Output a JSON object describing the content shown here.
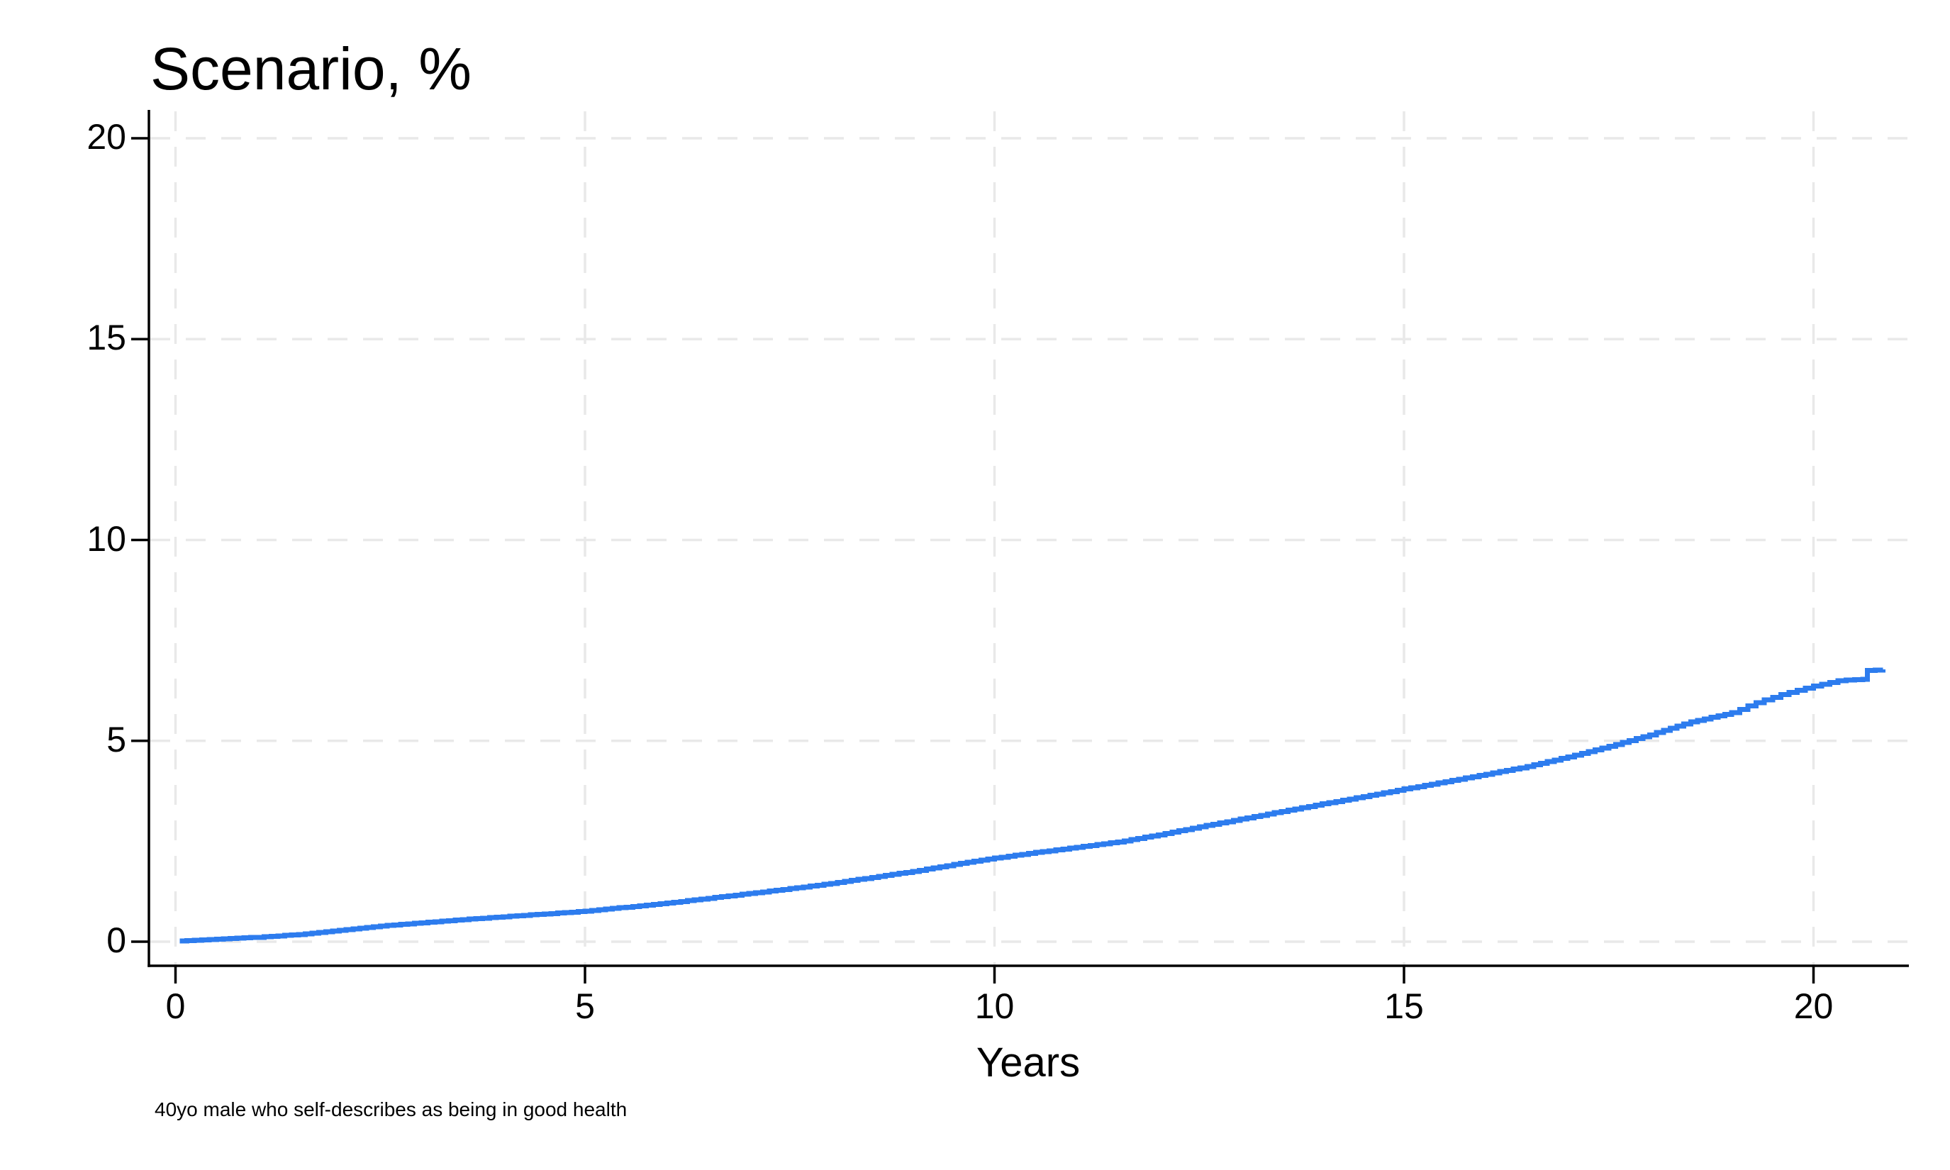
{
  "page": {
    "background": "#ffffff"
  },
  "chart_data": {
    "type": "line",
    "title": "Scenario, %",
    "xlabel": "Years",
    "ylabel": "",
    "footnote": "40yo male who self-describes as being in good health",
    "x_ticks": [
      0,
      5,
      10,
      15,
      20
    ],
    "y_ticks": [
      0,
      5,
      10,
      15,
      20
    ],
    "xlim": [
      -0.33,
      21.2
    ],
    "ylim": [
      -0.6,
      20.65
    ],
    "grid": true,
    "grid_style": "dashed",
    "legend_position": "none",
    "line_color": "#2d7cee",
    "axis_color": "#000000",
    "grid_color": "#e9e9e9",
    "series": [
      {
        "name": "Scenario",
        "style": "step",
        "points": [
          [
            0.05,
            0.02
          ],
          [
            0.5,
            0.06
          ],
          [
            1,
            0.11
          ],
          [
            1.5,
            0.18
          ],
          [
            2,
            0.28
          ],
          [
            2.5,
            0.39
          ],
          [
            3,
            0.47
          ],
          [
            3.5,
            0.55
          ],
          [
            4,
            0.62
          ],
          [
            4.5,
            0.69
          ],
          [
            5,
            0.76
          ],
          [
            5.5,
            0.86
          ],
          [
            6,
            0.96
          ],
          [
            6.5,
            1.08
          ],
          [
            7,
            1.2
          ],
          [
            7.5,
            1.32
          ],
          [
            8,
            1.45
          ],
          [
            8.5,
            1.6
          ],
          [
            9,
            1.75
          ],
          [
            9.5,
            1.92
          ],
          [
            10,
            2.08
          ],
          [
            10.5,
            2.22
          ],
          [
            11,
            2.35
          ],
          [
            11.5,
            2.48
          ],
          [
            12,
            2.66
          ],
          [
            12.5,
            2.86
          ],
          [
            13,
            3.05
          ],
          [
            13.5,
            3.24
          ],
          [
            14,
            3.43
          ],
          [
            14.5,
            3.61
          ],
          [
            15,
            3.8
          ],
          [
            15.5,
            3.98
          ],
          [
            16,
            4.17
          ],
          [
            16.5,
            4.36
          ],
          [
            17,
            4.6
          ],
          [
            17.5,
            4.86
          ],
          [
            18,
            5.15
          ],
          [
            18.5,
            5.47
          ],
          [
            19,
            5.7
          ],
          [
            19.3,
            5.95
          ],
          [
            19.6,
            6.15
          ],
          [
            20,
            6.36
          ],
          [
            20.3,
            6.5
          ],
          [
            20.6,
            6.53
          ],
          [
            20.66,
            6.75
          ],
          [
            20.85,
            6.78
          ]
        ]
      }
    ]
  }
}
